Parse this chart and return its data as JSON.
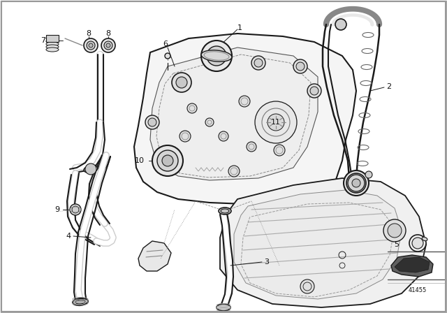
{
  "background_color": "#ffffff",
  "line_color": "#1a1a1a",
  "label_color": "#111111",
  "diagram_id": "41455",
  "fig_width": 6.4,
  "fig_height": 4.48,
  "dpi": 100,
  "border_color": "#cccccc"
}
